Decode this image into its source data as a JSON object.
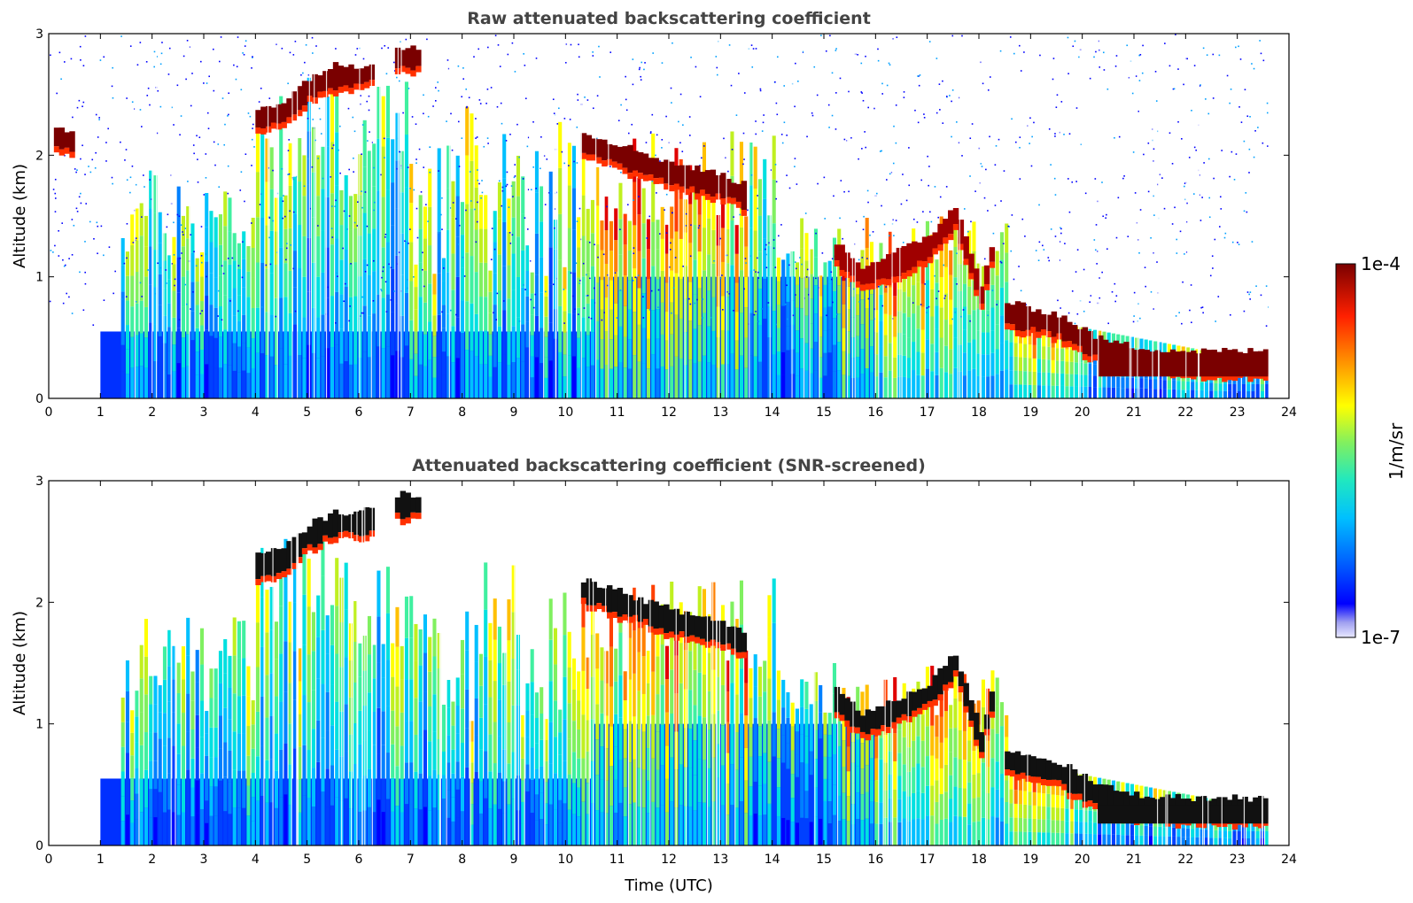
{
  "chart_data": [
    {
      "type": "heatmap",
      "title": "Raw attenuated backscattering coefficient",
      "xlabel": "",
      "ylabel": "Altitude (km)",
      "xlim": [
        0,
        24
      ],
      "ylim": [
        0,
        3
      ],
      "xticks": [
        "0",
        "1",
        "2",
        "3",
        "4",
        "5",
        "6",
        "7",
        "8",
        "9",
        "10",
        "11",
        "12",
        "13",
        "14",
        "15",
        "16",
        "17",
        "18",
        "19",
        "20",
        "21",
        "22",
        "23",
        "24"
      ],
      "yticks": [
        "0",
        "1",
        "2",
        "3"
      ],
      "data_end_hour": 23.6,
      "features": [
        {
          "name": "boundary-layer-top",
          "points": [
            [
              18.5,
              0.7
            ],
            [
              19.5,
              0.6
            ],
            [
              20.3,
              0.4
            ],
            [
              21,
              0.33
            ],
            [
              22,
              0.3
            ],
            [
              23.6,
              0.3
            ]
          ],
          "level": 1.0
        },
        {
          "name": "cloud-layer-2-4h",
          "points": [
            [
              4.0,
              2.3
            ],
            [
              4.5,
              2.35
            ],
            [
              5.0,
              2.55
            ],
            [
              5.5,
              2.65
            ],
            [
              6.0,
              2.65
            ],
            [
              6.3,
              2.7
            ]
          ],
          "level": 1.0
        },
        {
          "name": "cloud-layer-7h",
          "points": [
            [
              6.7,
              2.8
            ],
            [
              7.2,
              2.8
            ]
          ],
          "level": 1.0
        },
        {
          "name": "cloud-layer-11-13h",
          "points": [
            [
              10.3,
              2.1
            ],
            [
              11,
              2.0
            ],
            [
              12,
              1.85
            ],
            [
              13,
              1.75
            ],
            [
              13.5,
              1.65
            ]
          ],
          "level": 0.95
        },
        {
          "name": "cloud-layer-15-18h",
          "points": [
            [
              15.2,
              1.2
            ],
            [
              15.7,
              1.0
            ],
            [
              16.3,
              1.1
            ],
            [
              17,
              1.25
            ],
            [
              17.5,
              1.5
            ],
            [
              18,
              0.85
            ],
            [
              18.3,
              1.35
            ]
          ],
          "level": 0.9
        },
        {
          "name": "early-cloud",
          "points": [
            [
              0.1,
              2.15
            ],
            [
              0.5,
              2.1
            ]
          ],
          "level": 0.95
        }
      ]
    },
    {
      "type": "heatmap",
      "title": "Attenuated backscattering coefficient (SNR-screened)",
      "xlabel": "Time (UTC)",
      "ylabel": "Altitude (km)",
      "xlim": [
        0,
        24
      ],
      "ylim": [
        0,
        3
      ],
      "xticks": [
        "0",
        "1",
        "2",
        "3",
        "4",
        "5",
        "6",
        "7",
        "8",
        "9",
        "10",
        "11",
        "12",
        "13",
        "14",
        "15",
        "16",
        "17",
        "18",
        "19",
        "20",
        "21",
        "22",
        "23",
        "24"
      ],
      "yticks": [
        "0",
        "1",
        "2",
        "3"
      ],
      "data_end_hour": 23.6,
      "features": [
        {
          "name": "boundary-layer-top",
          "points": [
            [
              18.5,
              0.7
            ],
            [
              19.5,
              0.6
            ],
            [
              20.3,
              0.4
            ],
            [
              21,
              0.33
            ],
            [
              22,
              0.3
            ],
            [
              23.6,
              0.3
            ]
          ],
          "level": 1.0
        },
        {
          "name": "cloud-layer-2-4h",
          "points": [
            [
              4.0,
              2.3
            ],
            [
              4.5,
              2.35
            ],
            [
              5.0,
              2.55
            ],
            [
              5.5,
              2.65
            ],
            [
              6.0,
              2.65
            ],
            [
              6.3,
              2.7
            ]
          ],
          "level": 1.0
        },
        {
          "name": "cloud-layer-7h",
          "points": [
            [
              6.7,
              2.8
            ],
            [
              7.2,
              2.8
            ]
          ],
          "level": 1.0
        },
        {
          "name": "cloud-layer-11-13h",
          "points": [
            [
              10.3,
              2.1
            ],
            [
              11,
              2.0
            ],
            [
              12,
              1.85
            ],
            [
              13,
              1.75
            ],
            [
              13.5,
              1.65
            ]
          ],
          "level": 0.95
        },
        {
          "name": "cloud-layer-15-18h",
          "points": [
            [
              15.2,
              1.2
            ],
            [
              15.7,
              1.0
            ],
            [
              16.3,
              1.1
            ],
            [
              17,
              1.25
            ],
            [
              17.5,
              1.5
            ],
            [
              18,
              0.85
            ],
            [
              18.3,
              1.35
            ]
          ],
          "level": 0.9
        }
      ]
    }
  ],
  "colorbar": {
    "label": "1/m/sr",
    "max_label": "1e-4",
    "min_label": "1e-7",
    "colors": [
      "#e8e8ff",
      "#b0b0f0",
      "#7070f0",
      "#0000ff",
      "#0040ff",
      "#0080ff",
      "#00c0ff",
      "#00e0e0",
      "#40f0a0",
      "#80f060",
      "#c0f020",
      "#ffff00",
      "#ffc000",
      "#ff8000",
      "#ff4000",
      "#e00000",
      "#a00000",
      "#7a0000"
    ]
  }
}
